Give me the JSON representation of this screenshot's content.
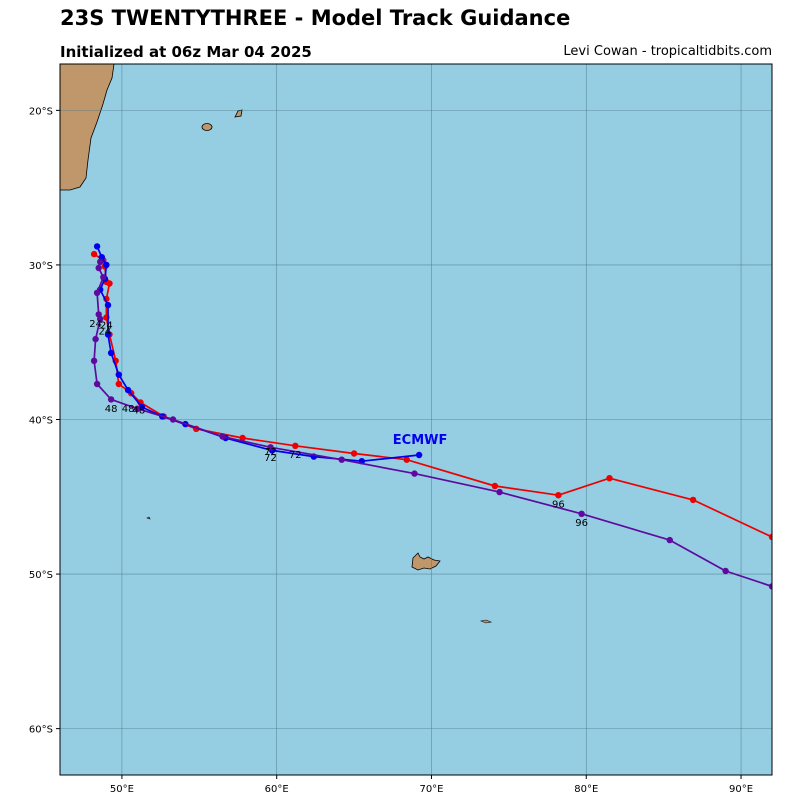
{
  "header": {
    "title": "23S TWENTYTHREE - Model Track Guidance",
    "subtitle": "Initialized at 06z Mar 04 2025",
    "credit": "Levi Cowan - tropicaltidbits.com"
  },
  "chart_data": {
    "type": "map-tracks",
    "lon_range": [
      46,
      92
    ],
    "lat_range": [
      -63,
      -17
    ],
    "x_ticks": [
      {
        "lon": 50,
        "label": "50°E"
      },
      {
        "lon": 60,
        "label": "60°E"
      },
      {
        "lon": 70,
        "label": "70°E"
      },
      {
        "lon": 80,
        "label": "80°E"
      },
      {
        "lon": 90,
        "label": "90°E"
      }
    ],
    "y_ticks": [
      {
        "lat": -20,
        "label": "20°S"
      },
      {
        "lat": -30,
        "label": "30°S"
      },
      {
        "lat": -40,
        "label": "40°S"
      },
      {
        "lat": -50,
        "label": "50°S"
      },
      {
        "lat": -60,
        "label": "60°S"
      }
    ],
    "colors": {
      "ocean": "#95cde3",
      "land": "#bf976a",
      "grid": "#4f7a86",
      "red": "#ee0000",
      "blue": "#0000ee",
      "purple": "#5e0a9e"
    },
    "series": [
      {
        "color": "#ee0000",
        "points": [
          [
            48.2,
            -29.3
          ],
          [
            48.8,
            -29.7
          ],
          [
            48.9,
            -30.1
          ],
          [
            49.0,
            -31.1
          ],
          [
            49.2,
            -31.2
          ],
          [
            49.0,
            -32.2
          ],
          [
            49.0,
            -33.4
          ],
          [
            49.2,
            -34.5
          ],
          [
            49.6,
            -36.2
          ],
          [
            49.8,
            -37.7
          ],
          [
            50.6,
            -38.3
          ],
          [
            51.2,
            -38.9
          ],
          [
            52.7,
            -39.8
          ],
          [
            54.8,
            -40.6
          ],
          [
            57.8,
            -41.2
          ],
          [
            61.2,
            -41.7
          ],
          [
            65.0,
            -42.2
          ],
          [
            68.4,
            -42.6
          ],
          [
            74.1,
            -44.3
          ],
          [
            78.2,
            -44.9
          ],
          [
            81.5,
            -43.8
          ],
          [
            86.9,
            -45.2
          ],
          [
            92.0,
            -47.6
          ]
        ],
        "hour_labels": [
          {
            "text": "24",
            "lon": 49.0,
            "lat": -34.1
          },
          {
            "text": "48",
            "lon": 50.4,
            "lat": -39.5
          },
          {
            "text": "72",
            "lon": 61.2,
            "lat": -42.5
          },
          {
            "text": "96",
            "lon": 78.2,
            "lat": -45.7
          }
        ]
      },
      {
        "color": "#0000ee",
        "model_label": "ECMWF",
        "model_label_pos": {
          "lon": 67.5,
          "lat": -41.6
        },
        "points": [
          [
            48.4,
            -28.8
          ],
          [
            48.7,
            -29.5
          ],
          [
            49.0,
            -30.0
          ],
          [
            48.9,
            -30.9
          ],
          [
            48.6,
            -31.6
          ],
          [
            49.1,
            -32.6
          ],
          [
            49.1,
            -34.5
          ],
          [
            49.3,
            -35.7
          ],
          [
            49.8,
            -37.1
          ],
          [
            50.4,
            -38.1
          ],
          [
            51.3,
            -39.2
          ],
          [
            52.6,
            -39.8
          ],
          [
            54.1,
            -40.3
          ],
          [
            56.7,
            -41.2
          ],
          [
            59.7,
            -42.0
          ],
          [
            62.4,
            -42.4
          ],
          [
            65.5,
            -42.7
          ],
          [
            69.2,
            -42.3
          ]
        ],
        "hour_labels": [
          {
            "text": "24",
            "lon": 48.9,
            "lat": -34.5
          },
          {
            "text": "48",
            "lon": 51.1,
            "lat": -39.6
          },
          {
            "text": "72",
            "lon": 59.6,
            "lat": -42.3
          }
        ]
      },
      {
        "color": "#5e0a9e",
        "points": [
          [
            48.6,
            -29.8
          ],
          [
            48.5,
            -30.2
          ],
          [
            48.8,
            -30.8
          ],
          [
            48.4,
            -31.8
          ],
          [
            48.5,
            -33.2
          ],
          [
            48.6,
            -33.5
          ],
          [
            48.3,
            -34.8
          ],
          [
            48.2,
            -36.2
          ],
          [
            48.4,
            -37.7
          ],
          [
            49.3,
            -38.7
          ],
          [
            51.0,
            -39.3
          ],
          [
            53.3,
            -40.0
          ],
          [
            56.5,
            -41.1
          ],
          [
            59.6,
            -41.8
          ],
          [
            64.2,
            -42.6
          ],
          [
            68.9,
            -43.5
          ],
          [
            74.4,
            -44.7
          ],
          [
            79.7,
            -46.1
          ],
          [
            85.4,
            -47.8
          ],
          [
            89.0,
            -49.8
          ],
          [
            92.0,
            -50.8
          ]
        ],
        "hour_labels": [
          {
            "text": "24",
            "lon": 48.3,
            "lat": -34.0
          },
          {
            "text": "48",
            "lon": 49.3,
            "lat": -39.5
          },
          {
            "text": "72",
            "lon": 59.6,
            "lat": -42.7
          },
          {
            "text": "96",
            "lon": 79.7,
            "lat": -46.9
          }
        ]
      }
    ]
  }
}
